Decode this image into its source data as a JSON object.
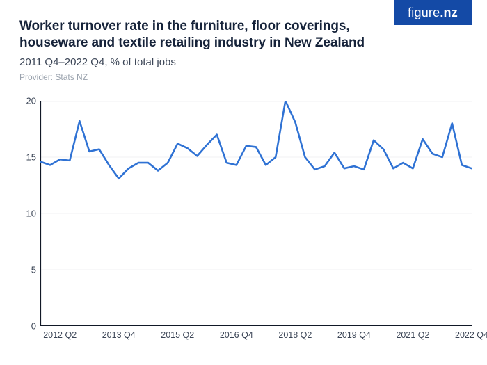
{
  "logo": {
    "text_a": "figure",
    "text_b": ".nz",
    "bg": "#144aa6",
    "fg": "#ffffff"
  },
  "header": {
    "title": "Worker turnover rate in the furniture, floor coverings, houseware and textile retailing industry in New Zealand",
    "subtitle": "2011 Q4–2022 Q4, % of total jobs",
    "provider": "Provider: Stats NZ"
  },
  "chart": {
    "type": "line",
    "background_color": "#ffffff",
    "grid_color": "#f0f1f3",
    "axis_line_color": "#111827",
    "axis_line_width": 1.2,
    "line_color": "#2f72d4",
    "line_width": 2.6,
    "ylim": [
      0,
      20
    ],
    "yticks": [
      0,
      5,
      10,
      15,
      20
    ],
    "ytick_fontsize": 13,
    "x_start_index": 0,
    "x_end_index": 44,
    "xticks": [
      {
        "index": 2,
        "label": "2012 Q2"
      },
      {
        "index": 8,
        "label": "2013 Q4"
      },
      {
        "index": 14,
        "label": "2015 Q2"
      },
      {
        "index": 20,
        "label": "2016 Q4"
      },
      {
        "index": 26,
        "label": "2018 Q2"
      },
      {
        "index": 32,
        "label": "2019 Q4"
      },
      {
        "index": 38,
        "label": "2021 Q2"
      },
      {
        "index": 44,
        "label": "2022 Q4"
      }
    ],
    "xtick_fontsize": 12.5,
    "values": [
      14.6,
      14.3,
      14.8,
      14.7,
      18.2,
      15.5,
      15.7,
      14.3,
      13.1,
      14.0,
      14.5,
      14.5,
      13.8,
      14.5,
      16.2,
      15.8,
      15.1,
      16.1,
      17.0,
      14.5,
      14.3,
      16.0,
      15.9,
      14.3,
      15.0,
      20.0,
      18.1,
      15.0,
      13.9,
      14.2,
      15.4,
      14.0,
      14.2,
      13.9,
      16.5,
      15.7,
      14.0,
      14.5,
      14.0,
      16.6,
      15.3,
      15.0,
      18.0,
      14.3,
      14.0
    ]
  }
}
